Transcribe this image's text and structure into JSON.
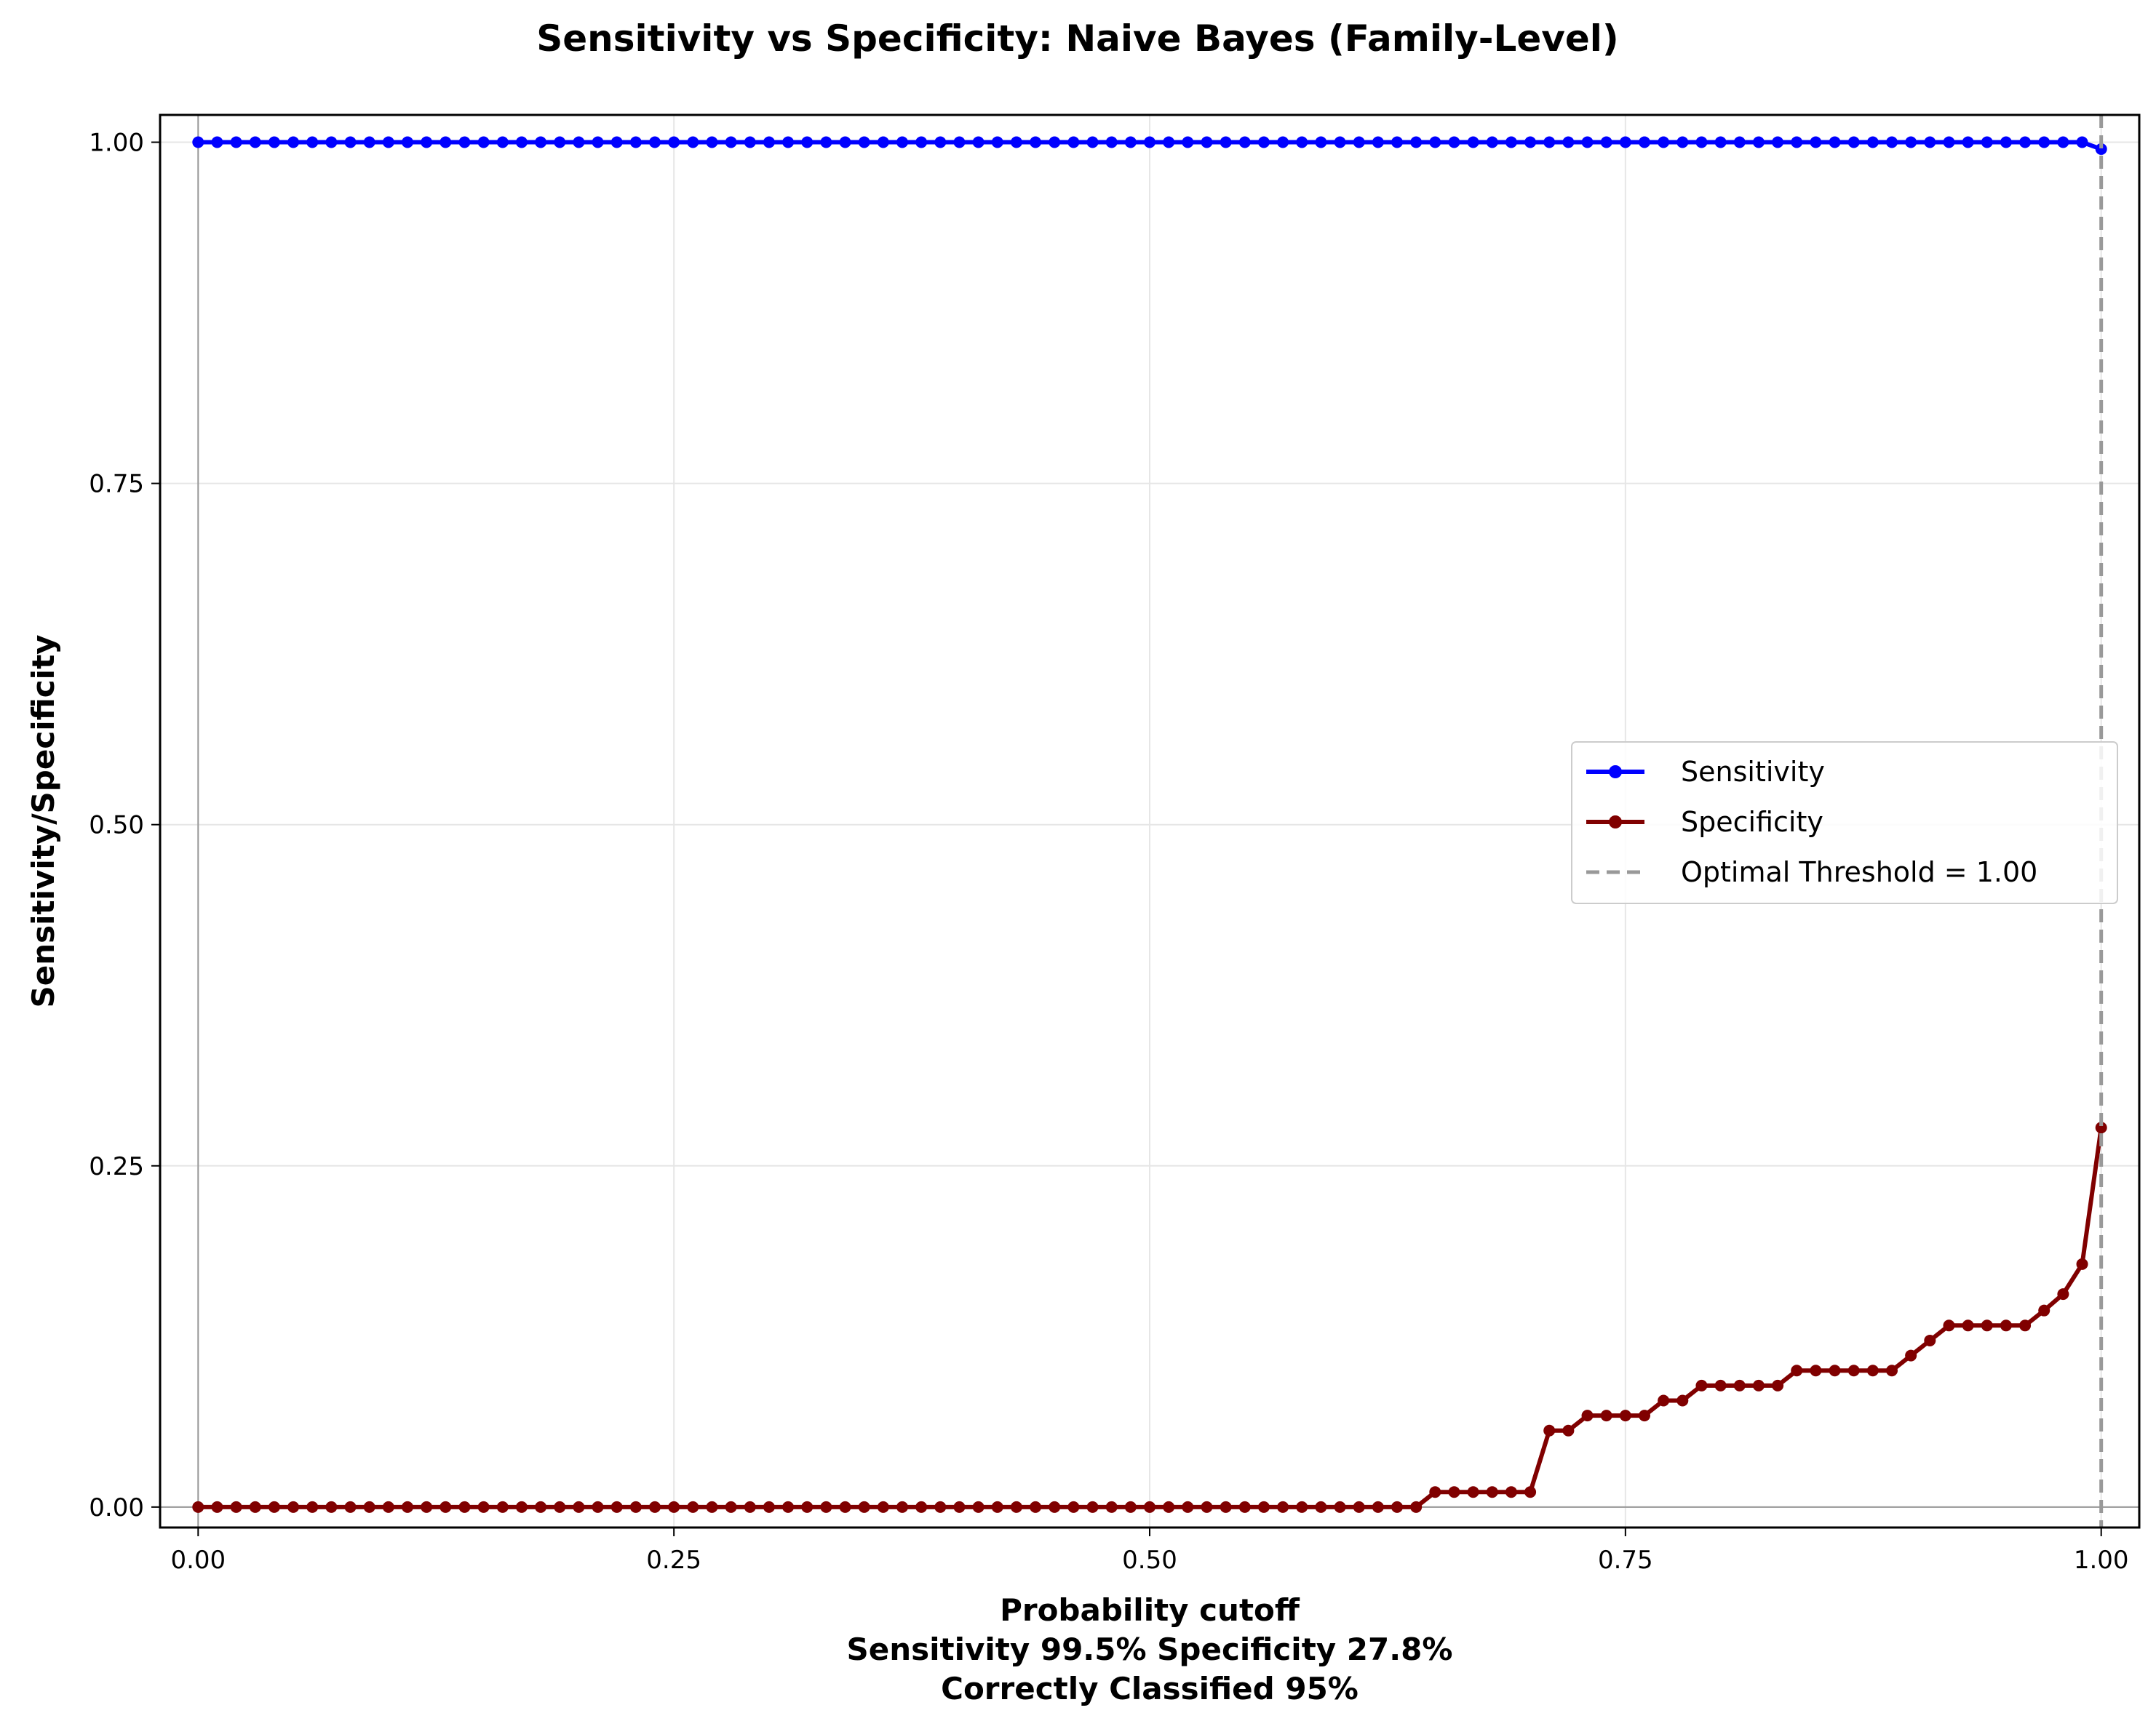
{
  "chart_data": {
    "type": "line",
    "title": "Sensitivity vs Specificity: Naive Bayes (Family-Level)",
    "xlabel": "Probability cutoff",
    "xlabel_lines": [
      "Sensitivity 99.5% Specificity 27.8%",
      "Correctly Classified 95%"
    ],
    "ylabel": "Sensitivity/Specificity",
    "xlim": [
      -0.02,
      1.02
    ],
    "ylim": [
      -0.015,
      1.02
    ],
    "xticks": [
      "0.00",
      "0.25",
      "0.50",
      "0.75",
      "1.00"
    ],
    "yticks": [
      "0.00",
      "0.25",
      "0.50",
      "0.75",
      "1.00"
    ],
    "grid": true,
    "legend_position": "center-right",
    "x_step": 0.01,
    "series": [
      {
        "name": "Sensitivity",
        "color": "#0000ff",
        "values": [
          1,
          1,
          1,
          1,
          1,
          1,
          1,
          1,
          1,
          1,
          1,
          1,
          1,
          1,
          1,
          1,
          1,
          1,
          1,
          1,
          1,
          1,
          1,
          1,
          1,
          1,
          1,
          1,
          1,
          1,
          1,
          1,
          1,
          1,
          1,
          1,
          1,
          1,
          1,
          1,
          1,
          1,
          1,
          1,
          1,
          1,
          1,
          1,
          1,
          1,
          1,
          1,
          1,
          1,
          1,
          1,
          1,
          1,
          1,
          1,
          1,
          1,
          1,
          1,
          1,
          1,
          1,
          1,
          1,
          1,
          1,
          1,
          1,
          1,
          1,
          1,
          1,
          1,
          1,
          1,
          1,
          1,
          1,
          1,
          1,
          1,
          1,
          1,
          1,
          1,
          1,
          1,
          1,
          1,
          1,
          1,
          1,
          1,
          1,
          1,
          0.995
        ]
      },
      {
        "name": "Specificity",
        "color": "#800000",
        "values": [
          0,
          0,
          0,
          0,
          0,
          0,
          0,
          0,
          0,
          0,
          0,
          0,
          0,
          0,
          0,
          0,
          0,
          0,
          0,
          0,
          0,
          0,
          0,
          0,
          0,
          0,
          0,
          0,
          0,
          0,
          0,
          0,
          0,
          0,
          0,
          0,
          0,
          0,
          0,
          0,
          0,
          0,
          0,
          0,
          0,
          0,
          0,
          0,
          0,
          0,
          0,
          0,
          0,
          0,
          0,
          0,
          0,
          0,
          0,
          0,
          0,
          0,
          0,
          0,
          0,
          0.011,
          0.011,
          0.011,
          0.011,
          0.011,
          0.011,
          0.056,
          0.056,
          0.067,
          0.067,
          0.067,
          0.067,
          0.078,
          0.078,
          0.089,
          0.089,
          0.089,
          0.089,
          0.089,
          0.1,
          0.1,
          0.1,
          0.1,
          0.1,
          0.1,
          0.111,
          0.122,
          0.133,
          0.133,
          0.133,
          0.133,
          0.133,
          0.144,
          0.156,
          0.178,
          0.278
        ]
      }
    ],
    "threshold": {
      "name": "Optimal Threshold = 1.00",
      "x": 1.0,
      "color": "#999999"
    }
  }
}
